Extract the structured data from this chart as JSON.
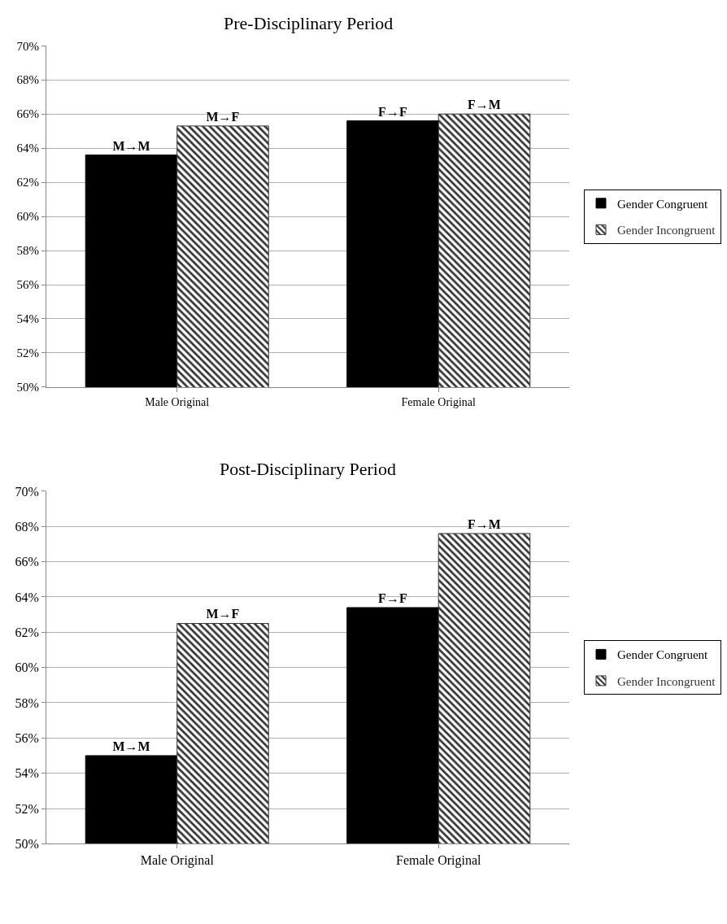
{
  "chart_data": [
    {
      "type": "bar",
      "title": "Pre-Disciplinary Period",
      "categories": [
        "Male Original",
        "Female Original"
      ],
      "series": [
        {
          "name": "Gender Congruent",
          "color": "#000000",
          "values": [
            63.6,
            65.6
          ],
          "value_labels": [
            "M→M",
            "F→F"
          ]
        },
        {
          "name": "Gender Incongruent",
          "color": "#333333",
          "values": [
            65.3,
            66.0
          ],
          "value_labels": [
            "M→F",
            "F→M"
          ]
        }
      ],
      "ylim": [
        50,
        70
      ],
      "yticks": [
        {
          "value": 50,
          "label": "50%"
        },
        {
          "value": 52,
          "label": "52%"
        },
        {
          "value": 54,
          "label": "54%"
        },
        {
          "value": 56,
          "label": "56%"
        },
        {
          "value": 58,
          "label": "58%"
        },
        {
          "value": 60,
          "label": "60%"
        },
        {
          "value": 62,
          "label": "62%"
        },
        {
          "value": 64,
          "label": "64%"
        },
        {
          "value": 66,
          "label": "66%"
        },
        {
          "value": 68,
          "label": "68%"
        },
        {
          "value": 70,
          "label": "70%"
        }
      ],
      "grid": "y",
      "legend": "right"
    },
    {
      "type": "bar",
      "title": "Post-Disciplinary Period",
      "categories": [
        "Male Original",
        "Female Original"
      ],
      "series": [
        {
          "name": "Gender Congruent",
          "color": "#000000",
          "values": [
            55.0,
            63.4
          ],
          "value_labels": [
            "M→M",
            "F→F"
          ]
        },
        {
          "name": "Gender Incongruent",
          "color": "#333333",
          "values": [
            62.5,
            67.6
          ],
          "value_labels": [
            "M→F",
            "F→M"
          ]
        }
      ],
      "ylim": [
        50,
        70
      ],
      "yticks": [
        {
          "value": 50,
          "label": "50%"
        },
        {
          "value": 52,
          "label": "52%"
        },
        {
          "value": 54,
          "label": "54%"
        },
        {
          "value": 56,
          "label": "56%"
        },
        {
          "value": 58,
          "label": "58%"
        },
        {
          "value": 60,
          "label": "60%"
        },
        {
          "value": 62,
          "label": "62%"
        },
        {
          "value": 64,
          "label": "64%"
        },
        {
          "value": 66,
          "label": "66%"
        },
        {
          "value": 68,
          "label": "68%"
        },
        {
          "value": 70,
          "label": "70%"
        }
      ],
      "grid": "y",
      "legend": "right"
    }
  ]
}
